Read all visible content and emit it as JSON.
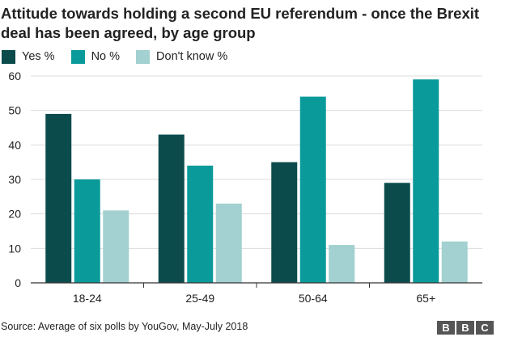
{
  "chart_data": {
    "type": "bar",
    "title": "Attitude towards holding a second EU referendum - once the Brexit deal has been agreed, by age group",
    "categories": [
      "18-24",
      "25-49",
      "50-64",
      "65+"
    ],
    "series": [
      {
        "name": "Yes %",
        "color": "#0c4b4b",
        "values": [
          49,
          43,
          35,
          29
        ]
      },
      {
        "name": "No %",
        "color": "#0b9a9a",
        "values": [
          30,
          34,
          54,
          59
        ]
      },
      {
        "name": "Don't know %",
        "color": "#a3d0d0",
        "values": [
          21,
          23,
          11,
          12
        ]
      }
    ],
    "ylim": [
      0,
      60
    ],
    "yticks": [
      0,
      10,
      20,
      30,
      40,
      50,
      60
    ],
    "xlabel": "",
    "ylabel": "",
    "grid": true,
    "legend": "top-left"
  },
  "source": "Source: Average of six polls by YouGov, May-July 2018",
  "logo": {
    "letters": [
      "B",
      "B",
      "C"
    ]
  }
}
